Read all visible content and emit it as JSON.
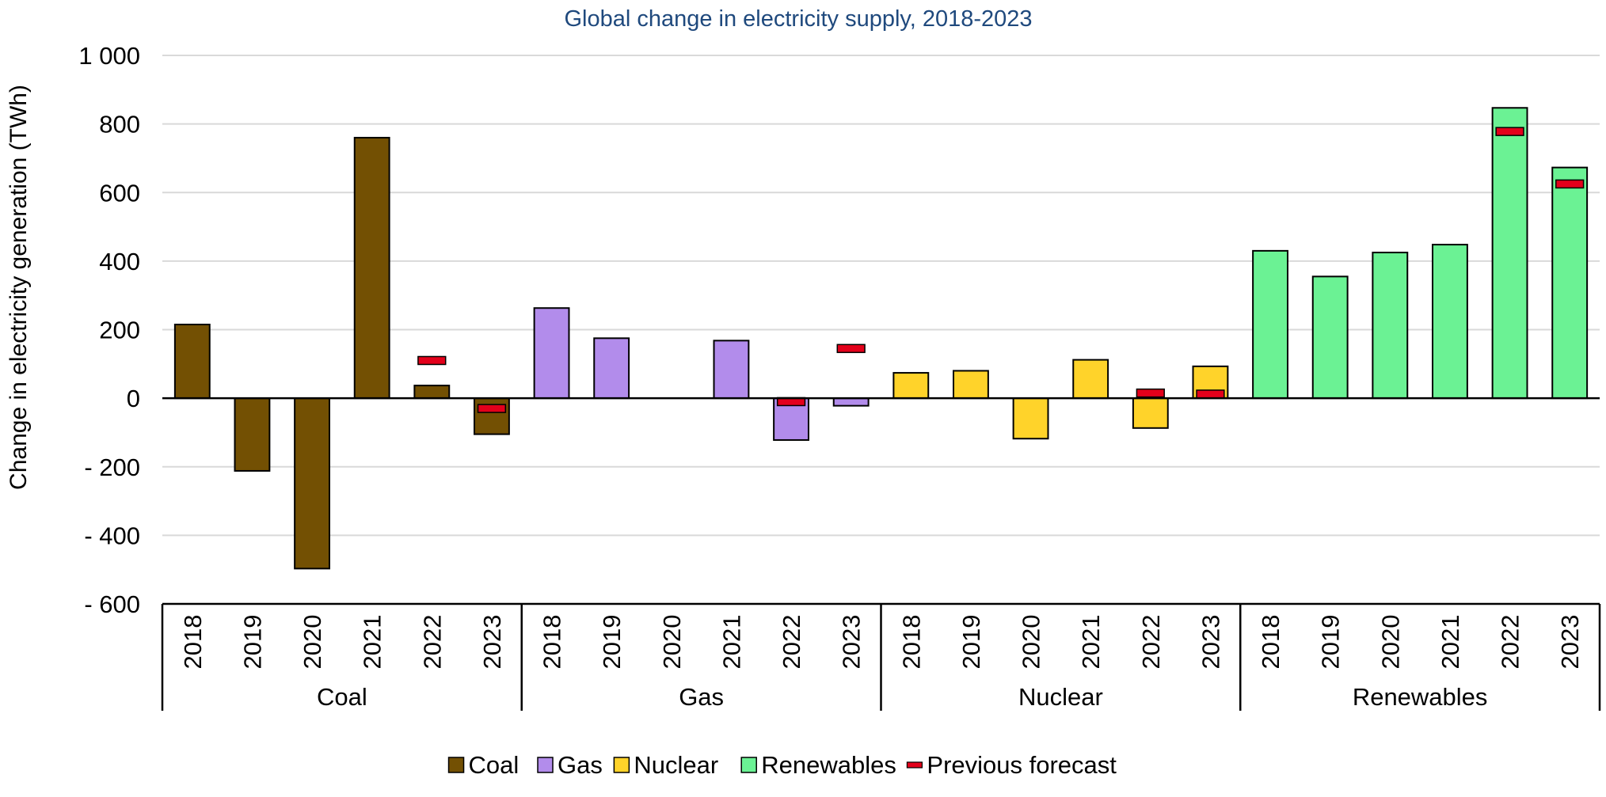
{
  "chart_data": {
    "type": "bar",
    "title": "Global change in electricity supply, 2018-2023",
    "ylabel": "Change in electricity generation (TWh)",
    "xlabel": "",
    "ylim": [
      -600,
      1000
    ],
    "yticks": [
      -600,
      -400,
      -200,
      0,
      200,
      400,
      600,
      800,
      1000
    ],
    "ytick_labels": [
      "- 600",
      "- 400",
      "- 200",
      "0",
      "200",
      "400",
      "600",
      "800",
      "1 000"
    ],
    "grid": true,
    "legend_position": "bottom",
    "years": [
      "2018",
      "2019",
      "2020",
      "2021",
      "2022",
      "2023"
    ],
    "groups": [
      {
        "name": "Coal",
        "color": "#735003",
        "values": [
          215,
          -212,
          -497,
          760,
          37,
          -105
        ],
        "previous_forecast": [
          null,
          null,
          null,
          null,
          110,
          -30
        ]
      },
      {
        "name": "Gas",
        "color": "#B28CEB",
        "values": [
          263,
          175,
          0,
          168,
          -122,
          -22
        ],
        "previous_forecast": [
          null,
          null,
          null,
          null,
          -10,
          145
        ]
      },
      {
        "name": "Nuclear",
        "color": "#FFD32A",
        "values": [
          74,
          80,
          -118,
          112,
          -87,
          93
        ],
        "previous_forecast": [
          null,
          null,
          null,
          null,
          15,
          12
        ]
      },
      {
        "name": "Renewables",
        "color": "#6BF294",
        "values": [
          430,
          355,
          425,
          448,
          847,
          673
        ],
        "previous_forecast": [
          null,
          null,
          null,
          null,
          778,
          625
        ]
      }
    ],
    "legend": [
      {
        "label": "Coal",
        "color": "#735003",
        "kind": "box"
      },
      {
        "label": "Gas",
        "color": "#B28CEB",
        "kind": "box"
      },
      {
        "label": "Nuclear",
        "color": "#FFD32A",
        "kind": "box"
      },
      {
        "label": "Renewables",
        "color": "#6BF294",
        "kind": "box"
      },
      {
        "label": "Previous forecast",
        "color": "#E3001B",
        "kind": "dash"
      }
    ],
    "colors": {
      "title": "#1F497D",
      "gridline": "#D9D9D9",
      "axis": "#000000",
      "forecast": "#E3001B"
    }
  }
}
